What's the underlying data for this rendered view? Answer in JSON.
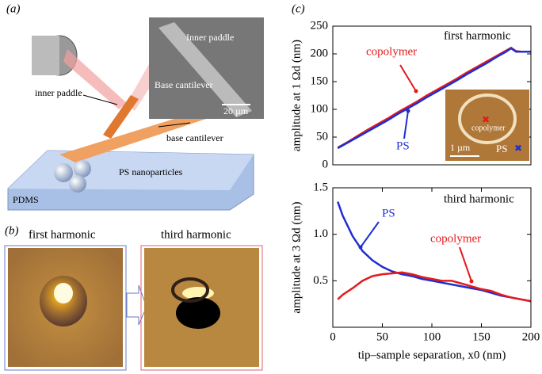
{
  "panel_a": {
    "letter": "(a)",
    "labels": [
      "inner paddle",
      "base cantilever",
      "PS nanoparticles",
      "PDMS"
    ],
    "inset": {
      "labels": [
        "Inner paddle",
        "Base cantilever"
      ],
      "scale_bar": "20 µm"
    }
  },
  "panel_b": {
    "letter": "(b)",
    "titles": [
      "first harmonic",
      "third harmonic"
    ]
  },
  "panel_c": {
    "letter": "(c)"
  },
  "chart_data": [
    {
      "type": "line",
      "annotations": [
        "first harmonic",
        "copolymer",
        "PS"
      ],
      "ylabel": "amplitude at 1 Ωd (nm)",
      "inset": {
        "scale_bar": "1 µm",
        "labels": [
          "copolymer",
          "PS"
        ]
      },
      "x": [
        5,
        15,
        25,
        35,
        45,
        55,
        65,
        75,
        85,
        95,
        105,
        115,
        125,
        135,
        145,
        155,
        165,
        175,
        180,
        185,
        190,
        200
      ],
      "series": [
        {
          "name": "copolymer",
          "color": "#e41a1c",
          "values": [
            31,
            41,
            52,
            63,
            73,
            83,
            94,
            104,
            114,
            125,
            135,
            145,
            155,
            166,
            176,
            186,
            196,
            206,
            211,
            205,
            204,
            204
          ]
        },
        {
          "name": "PS",
          "color": "#1f2fd0",
          "values": [
            30,
            40,
            50,
            60,
            70,
            80,
            91,
            101,
            111,
            122,
            132,
            142,
            152,
            163,
            173,
            183,
            194,
            204,
            210,
            204,
            204,
            204
          ]
        }
      ],
      "xlim": [
        0,
        200
      ],
      "ylim": [
        0,
        250
      ],
      "yticks": [
        0,
        50,
        100,
        150,
        200,
        250
      ]
    },
    {
      "type": "line",
      "annotations": [
        "third harmonic",
        "PS",
        "copolymer"
      ],
      "ylabel": "amplitude at 3 Ωd (nm)",
      "xlabel": "tip–sample separation, x0 (nm)",
      "x": [
        5,
        10,
        20,
        30,
        40,
        50,
        60,
        70,
        80,
        90,
        100,
        110,
        120,
        130,
        140,
        150,
        160,
        170,
        180,
        190,
        200
      ],
      "series": [
        {
          "name": "PS",
          "color": "#1f2fd0",
          "values": [
            1.35,
            1.2,
            0.98,
            0.82,
            0.72,
            0.65,
            0.6,
            0.57,
            0.55,
            0.52,
            0.5,
            0.48,
            0.46,
            0.44,
            0.42,
            0.4,
            0.37,
            0.34,
            0.32,
            0.3,
            0.28
          ]
        },
        {
          "name": "copolymer",
          "color": "#e41a1c",
          "values": [
            0.3,
            0.35,
            0.42,
            0.5,
            0.55,
            0.57,
            0.58,
            0.59,
            0.57,
            0.54,
            0.52,
            0.5,
            0.5,
            0.47,
            0.44,
            0.41,
            0.39,
            0.35,
            0.32,
            0.3,
            0.28
          ]
        }
      ],
      "xlim": [
        0,
        200
      ],
      "ylim": [
        0,
        1.5
      ],
      "xticks": [
        0,
        50,
        100,
        150,
        200
      ],
      "yticks": [
        0.5,
        {
          "value": 1.0,
          "label": "1.0"
        },
        1.5
      ]
    }
  ]
}
